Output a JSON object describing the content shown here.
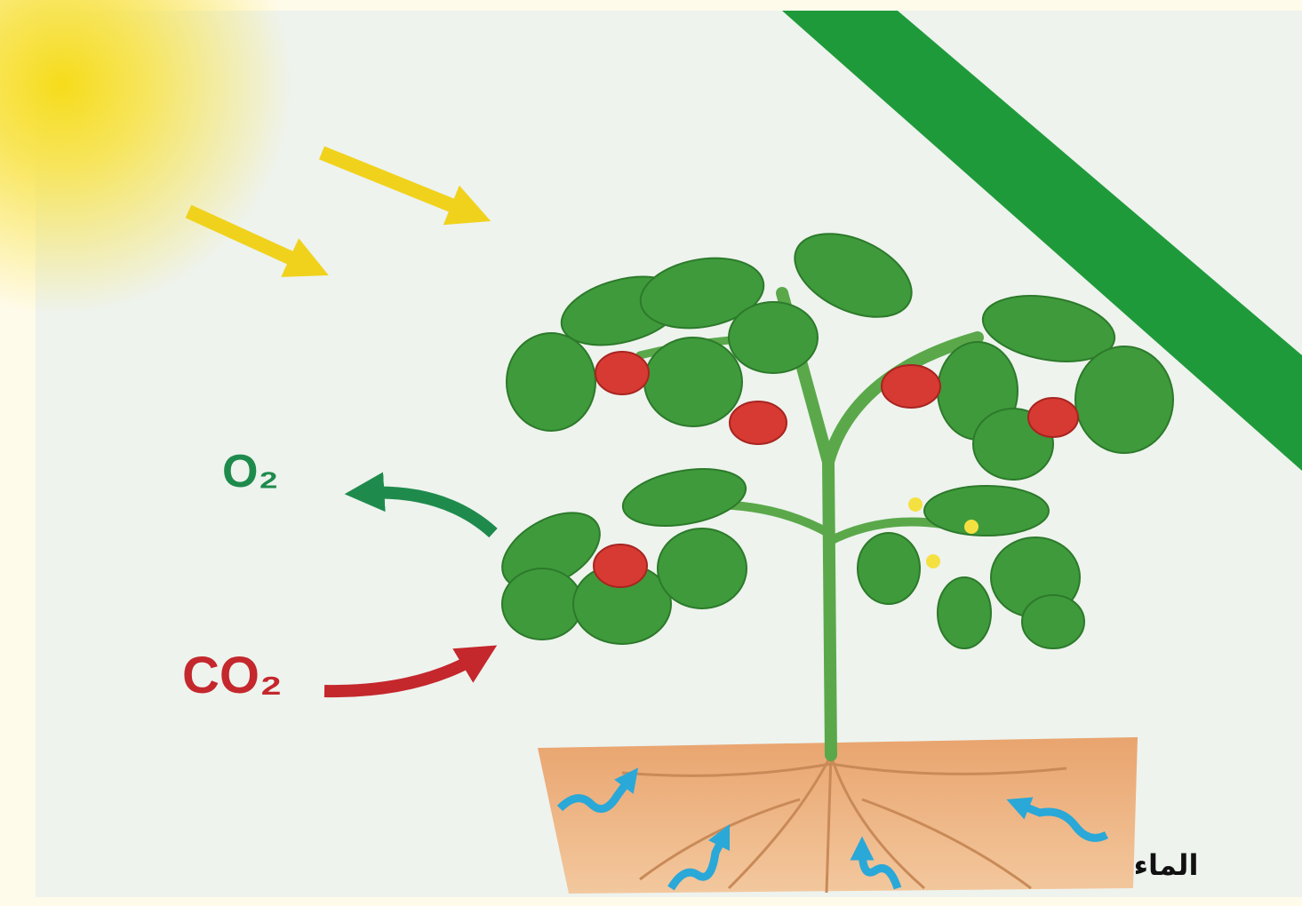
{
  "labels": {
    "oxygen": "O₂",
    "carbon_dioxide": "CO₂",
    "water": "الماء"
  }
}
